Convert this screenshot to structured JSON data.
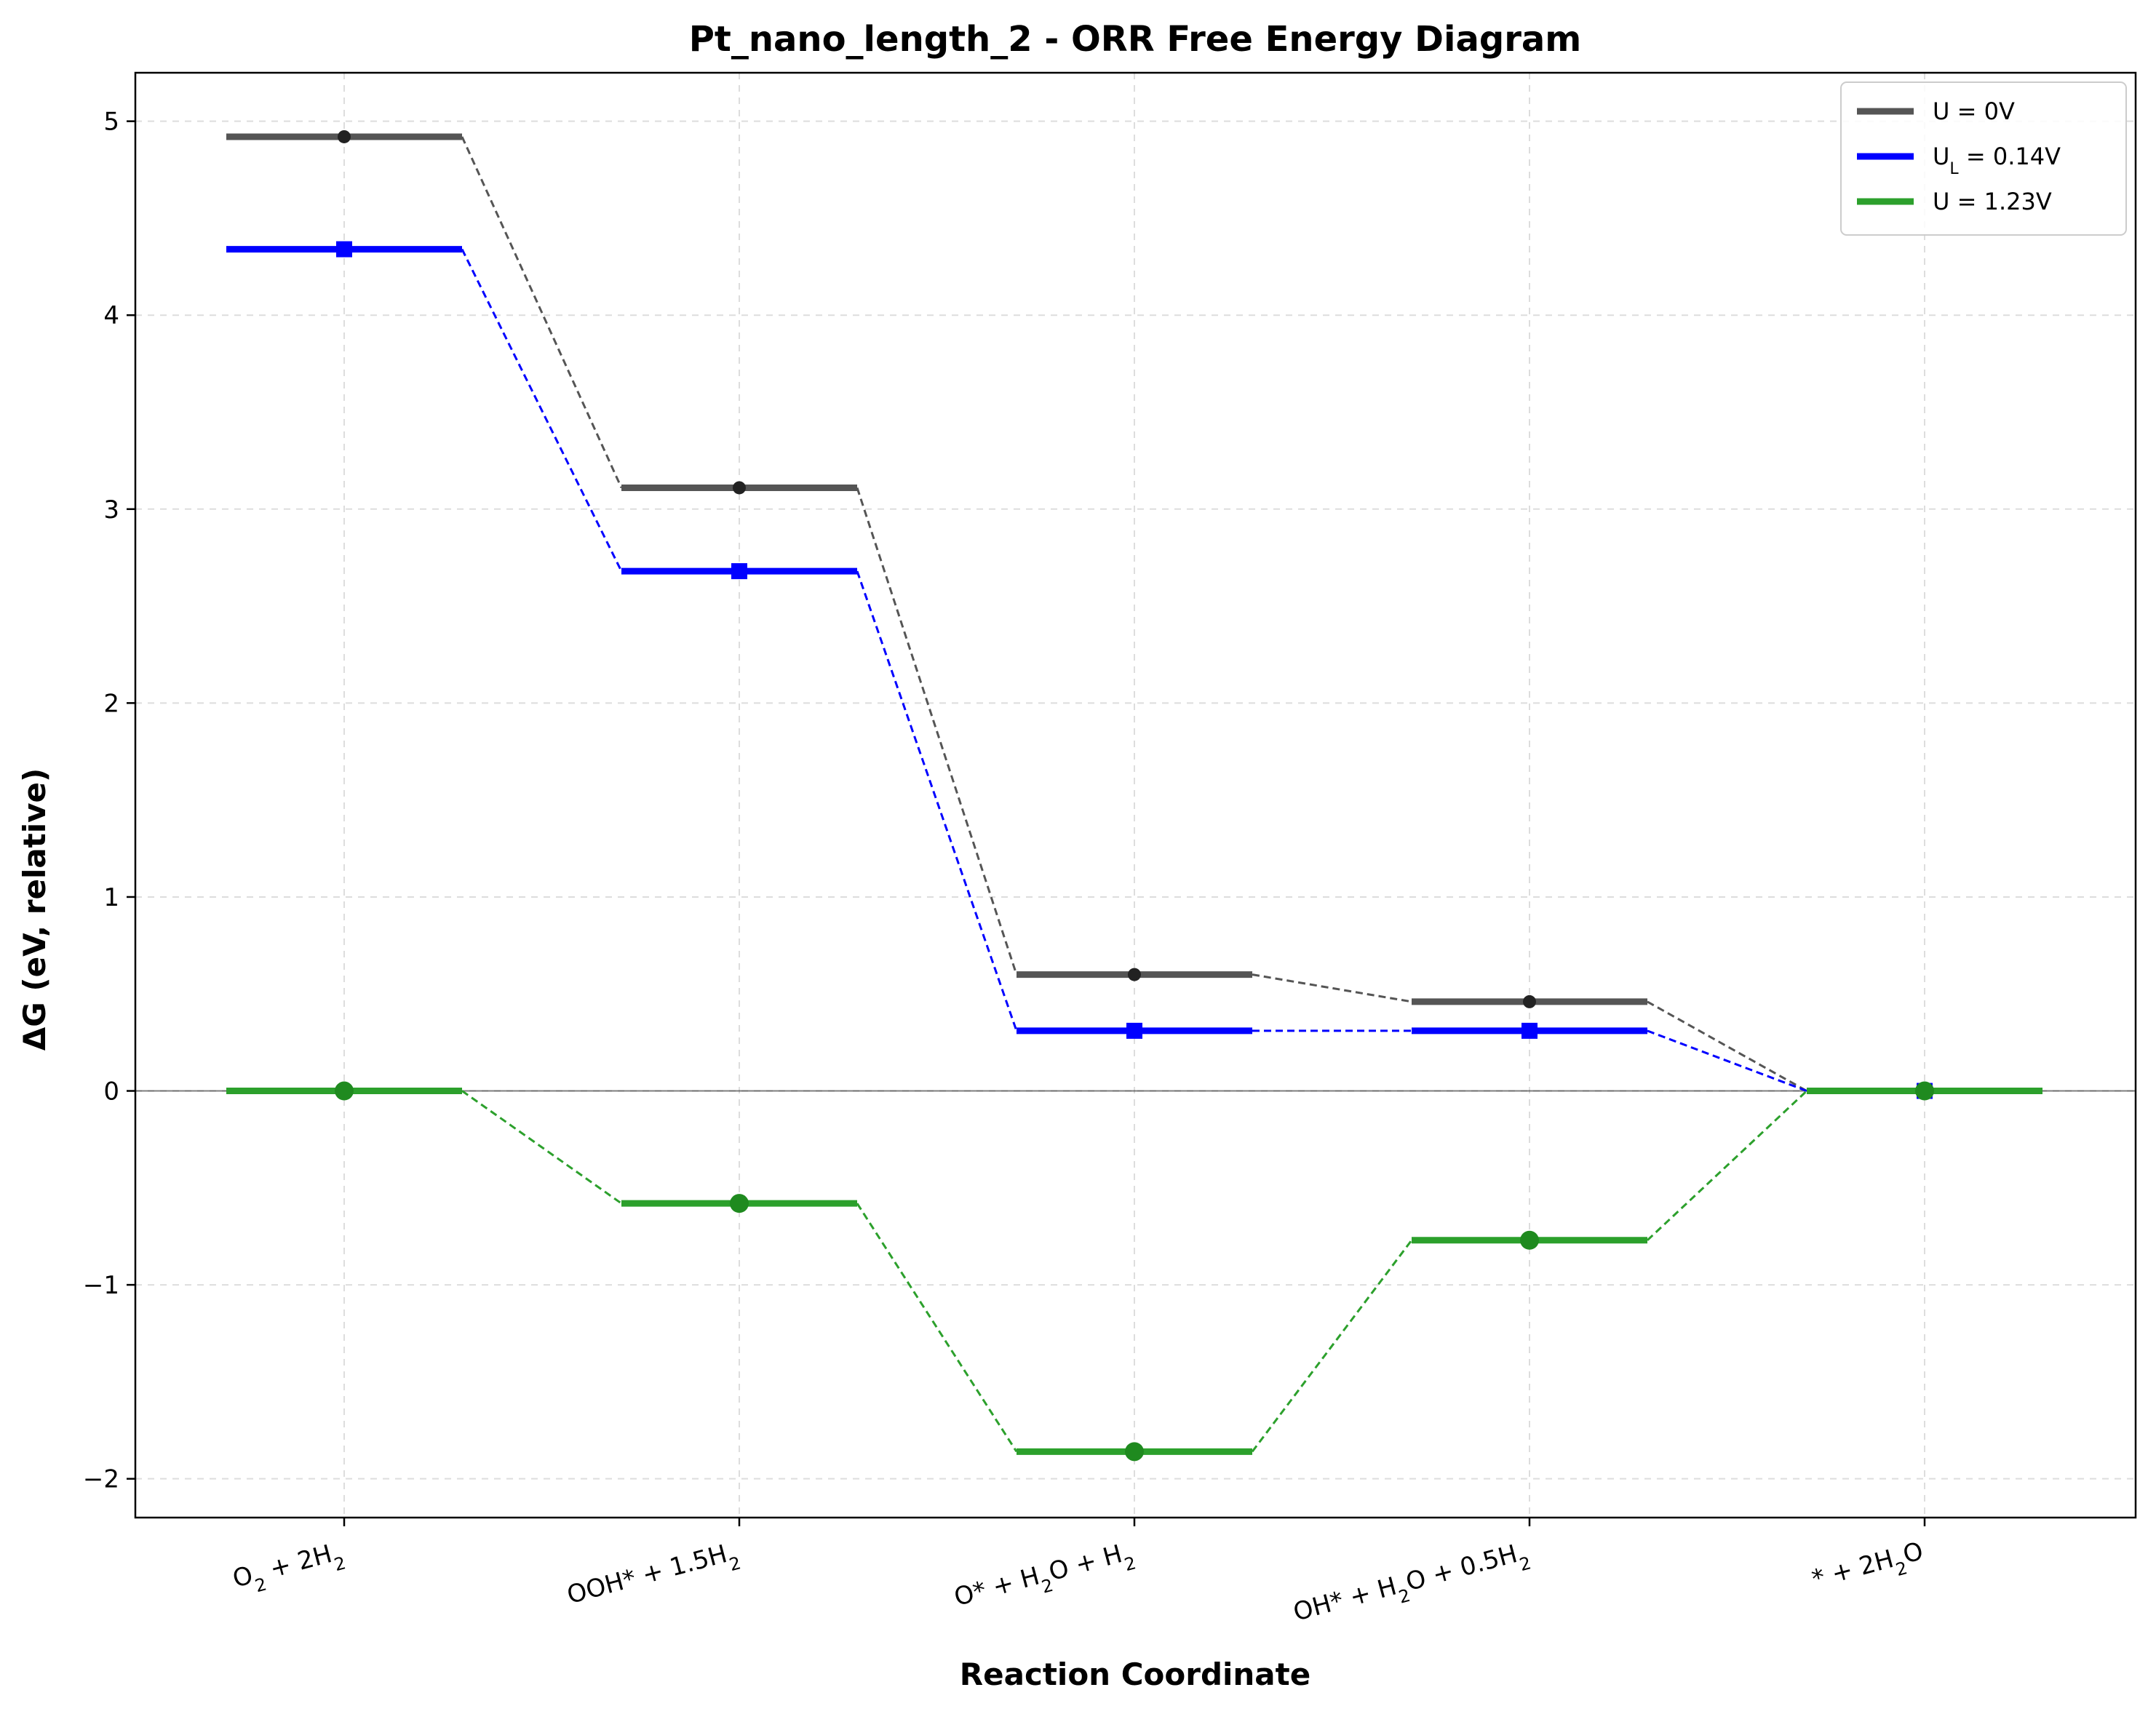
{
  "chart_data": {
    "type": "line",
    "title": "Pt_nano_length_2 - ORR Free Energy Diagram",
    "xlabel": "Reaction Coordinate",
    "ylabel": "ΔG (eV, relative)",
    "ylim": [
      -2.2,
      5.25
    ],
    "yticks": [
      -2,
      -1,
      0,
      1,
      2,
      3,
      4,
      5
    ],
    "ytick_labels": [
      "−2",
      "−1",
      "0",
      "1",
      "2",
      "3",
      "4",
      "5"
    ],
    "categories": [
      {
        "main": "O",
        "sub": "2",
        "tail": " + 2H",
        "sub2": "2",
        "tail2": ""
      },
      {
        "main": "OOH* + 1.5H",
        "sub": "2",
        "tail": "",
        "sub2": "",
        "tail2": ""
      },
      {
        "main": "O* + H",
        "sub": "2",
        "tail": "O + H",
        "sub2": "2",
        "tail2": ""
      },
      {
        "main": "OH* + H",
        "sub": "2",
        "tail": "O + 0.5H",
        "sub2": "2",
        "tail2": ""
      },
      {
        "main": "* + 2H",
        "sub": "2",
        "tail": "O",
        "sub2": "",
        "tail2": ""
      }
    ],
    "grid": true,
    "legend_position": "top-right",
    "series": [
      {
        "name": "U = 0V",
        "name_main": "U = 0V",
        "name_sub": "",
        "name_tail": "",
        "color": "#555555",
        "marker_color": "#222222",
        "marker": "circle-small",
        "values": [
          4.92,
          3.11,
          0.6,
          0.46,
          0.0
        ]
      },
      {
        "name": "UL = 0.14V",
        "name_main": "U",
        "name_sub": "L",
        "name_tail": " = 0.14V",
        "color": "#0000ff",
        "marker_color": "#0000ff",
        "marker": "square",
        "values": [
          4.34,
          2.68,
          0.31,
          0.31,
          0.0
        ]
      },
      {
        "name": "U = 1.23V",
        "name_main": "U = 1.23V",
        "name_sub": "",
        "name_tail": "",
        "color": "#2ca02c",
        "marker_color": "#1f8a1f",
        "marker": "circle",
        "values": [
          0.0,
          -0.58,
          -1.86,
          -0.77,
          0.0
        ]
      }
    ]
  }
}
